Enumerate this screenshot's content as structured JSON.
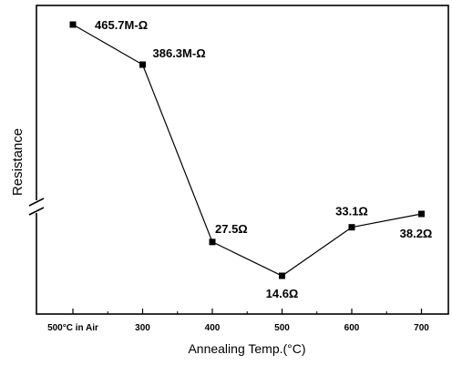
{
  "chart_data": {
    "type": "line",
    "xlabel": "Annealing Temp.(°C)",
    "ylabel": "Resistance",
    "categories": [
      "500°C in Air",
      "300",
      "400",
      "500",
      "600",
      "700"
    ],
    "series": [
      {
        "values": [
          465.7,
          386.3,
          27.5,
          14.6,
          33.1,
          38.2
        ],
        "labels": [
          "465.7M-Ω",
          "386.3M-Ω",
          "27.5Ω",
          "14.6Ω",
          "33.1Ω",
          "38.2Ω"
        ]
      }
    ],
    "y_break": true,
    "y_ticks_shown": false,
    "grid": false,
    "legend": "none",
    "line_color": "#000000",
    "marker": "square"
  }
}
